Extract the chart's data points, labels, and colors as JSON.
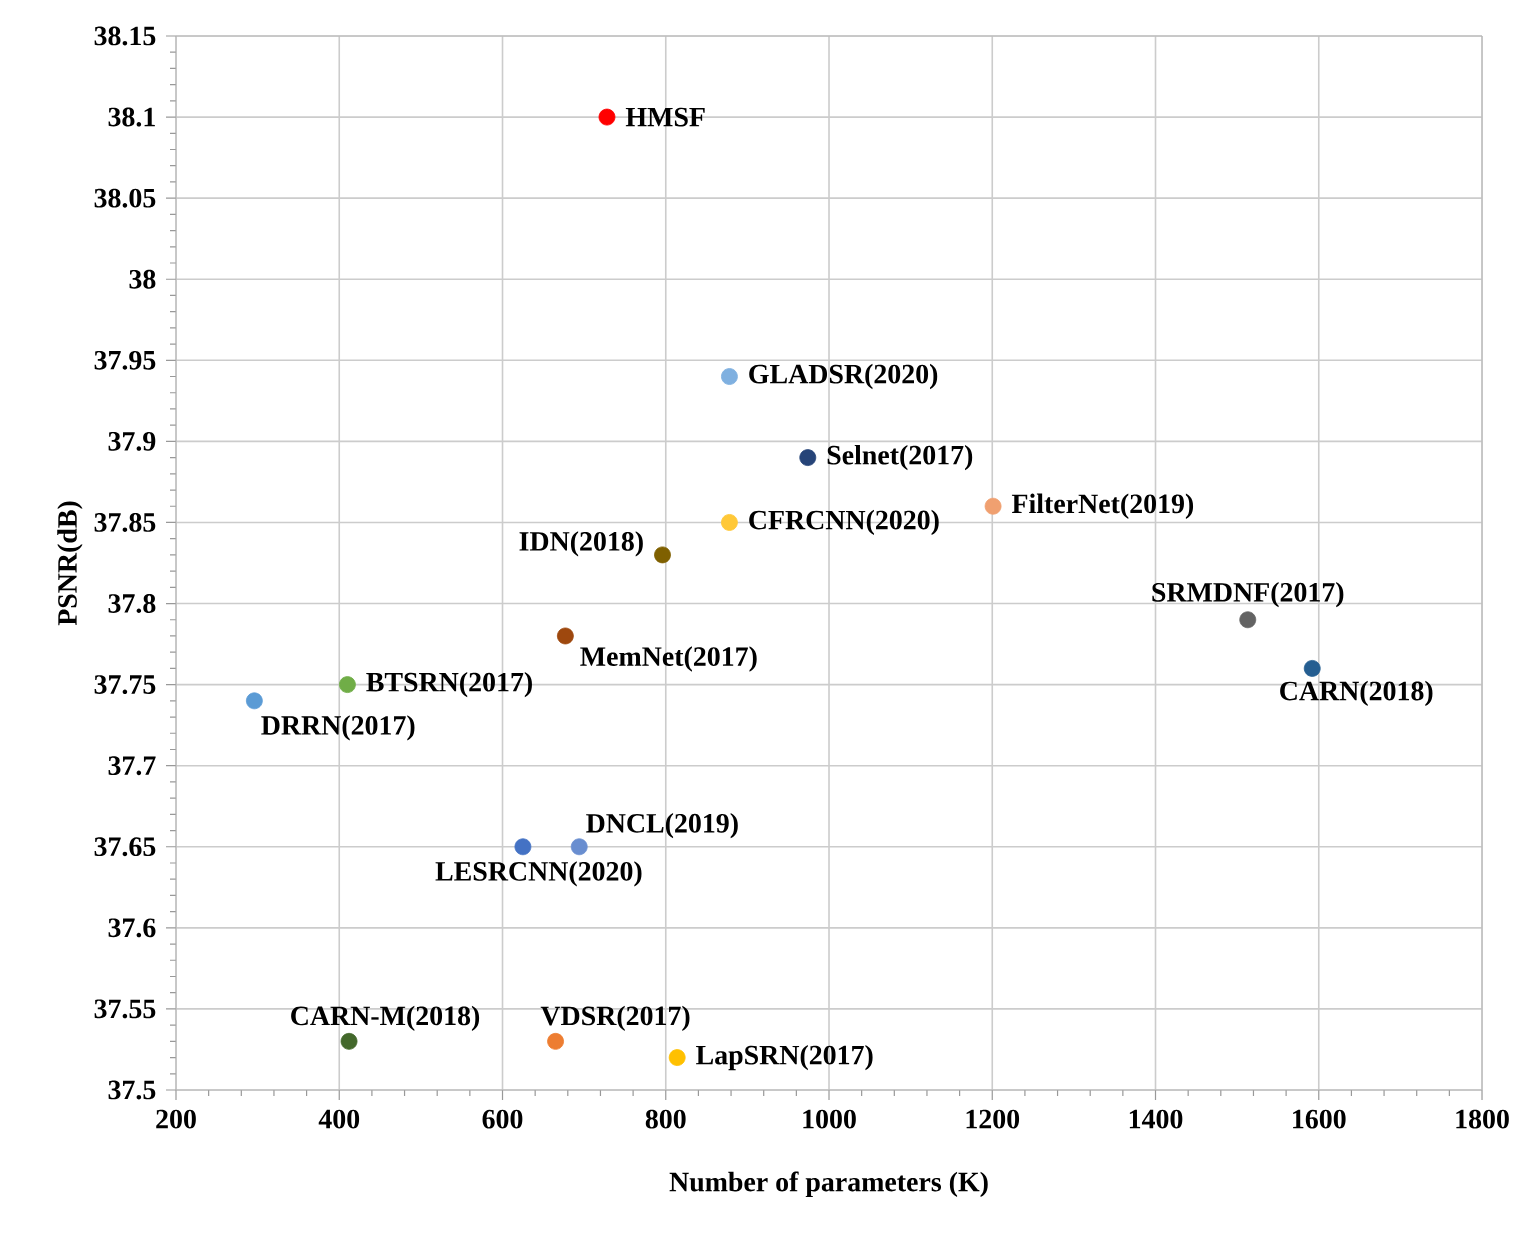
{
  "chart_data": {
    "type": "scatter",
    "xlabel": "Number of parameters (K)",
    "ylabel": "PSNR(dB)",
    "xlim": [
      200,
      1800
    ],
    "xticks": [
      200,
      400,
      600,
      800,
      1000,
      1200,
      1400,
      1600,
      1800
    ],
    "ylim": [
      37.5,
      38.15
    ],
    "yticks": [
      37.5,
      37.55,
      37.6,
      37.65,
      37.7,
      37.75,
      37.8,
      37.85,
      37.9,
      37.95,
      38,
      38.05,
      38.1,
      38.15
    ],
    "grid": true,
    "marker": "circle",
    "series": [
      {
        "name": "HMSF",
        "color": "#ff0000",
        "x": [
          728
        ],
        "values": [
          38.1
        ]
      },
      {
        "name": "GLADSR(2020)",
        "color": "#7fb0e0",
        "x": [
          878
        ],
        "values": [
          37.94
        ]
      },
      {
        "name": "Selnet(2017)",
        "color": "#264478",
        "x": [
          974
        ],
        "values": [
          37.89
        ]
      },
      {
        "name": "FilterNet(2019)",
        "color": "#f0a070",
        "x": [
          1201
        ],
        "values": [
          37.86
        ]
      },
      {
        "name": "CFRCNN(2020)",
        "color": "#ffc838",
        "x": [
          878
        ],
        "values": [
          37.85
        ]
      },
      {
        "name": "IDN(2018)",
        "color": "#7f6000",
        "x": [
          796
        ],
        "values": [
          37.83
        ]
      },
      {
        "name": "MemNet(2017)",
        "color": "#9e480e",
        "x": [
          677
        ],
        "values": [
          37.78
        ]
      },
      {
        "name": "SRMDNF(2017)",
        "color": "#636363",
        "x": [
          1513
        ],
        "values": [
          37.79
        ]
      },
      {
        "name": "CARN(2018)",
        "color": "#255e91",
        "x": [
          1592
        ],
        "values": [
          37.76
        ]
      },
      {
        "name": "BTSRN(2017)",
        "color": "#70ad47",
        "x": [
          410
        ],
        "values": [
          37.75
        ]
      },
      {
        "name": "DRRN(2017)",
        "color": "#5b9bd5",
        "x": [
          296
        ],
        "values": [
          37.74
        ]
      },
      {
        "name": "LESRCNN(2020)",
        "color": "#4472c4",
        "x": [
          625
        ],
        "values": [
          37.65
        ]
      },
      {
        "name": "DNCL(2019)",
        "color": "#698ed0",
        "x": [
          694
        ],
        "values": [
          37.65
        ]
      },
      {
        "name": "CARN-M(2018)",
        "color": "#43682b",
        "x": [
          412
        ],
        "values": [
          37.53
        ]
      },
      {
        "name": "VDSR(2017)",
        "color": "#ed7d31",
        "x": [
          665
        ],
        "values": [
          37.53
        ]
      },
      {
        "name": "LapSRN(2017)",
        "color": "#ffc000",
        "x": [
          814
        ],
        "values": [
          37.52
        ]
      }
    ]
  }
}
